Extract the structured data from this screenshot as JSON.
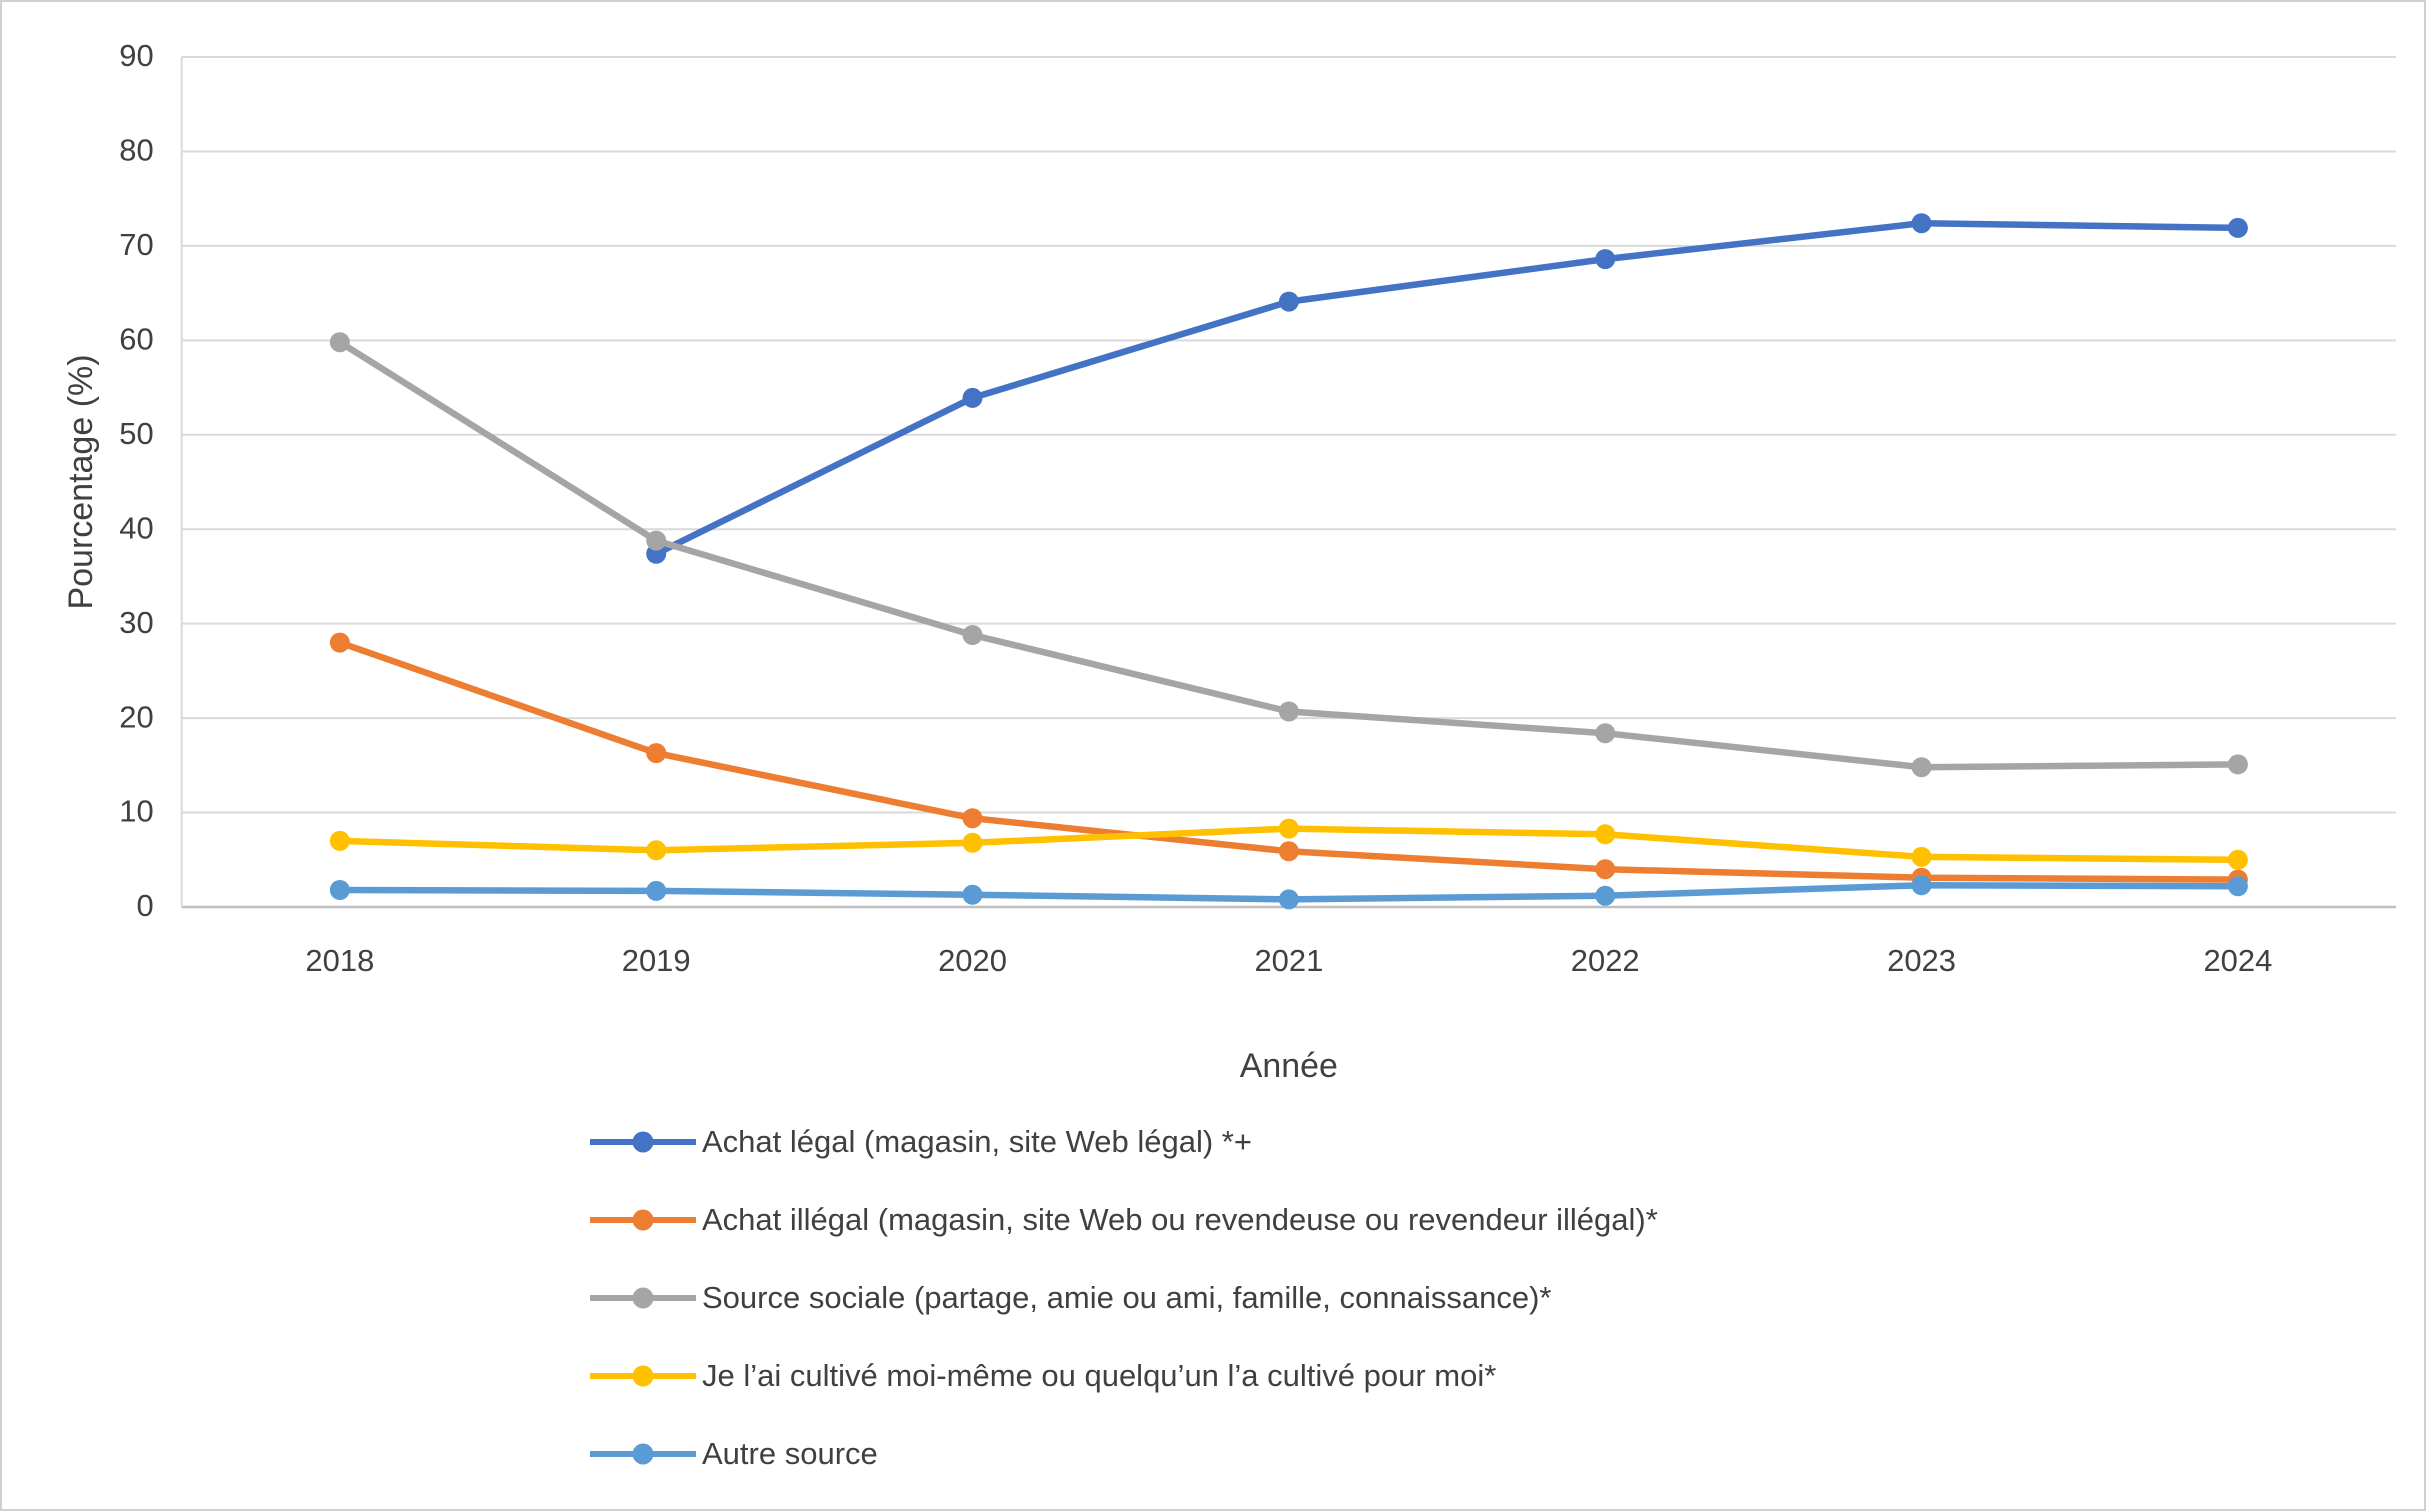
{
  "chart_data": {
    "type": "line",
    "x": [
      "2018",
      "2019",
      "2020",
      "2021",
      "2022",
      "2023",
      "2024"
    ],
    "xlabel": "Année",
    "ylabel": "Pourcentage (%)",
    "ylim": [
      0,
      90
    ],
    "ytick_step": 10,
    "grid": true,
    "legend_position": "bottom-left",
    "series": [
      {
        "name": "Achat légal (magasin, site Web légal) *+",
        "color": "#4472C4",
        "values": [
          null,
          37.4,
          53.9,
          64.1,
          68.6,
          72.4,
          71.9
        ]
      },
      {
        "name": "Achat illégal (magasin, site Web ou revendeuse ou revendeur illégal)*",
        "color": "#ED7D31",
        "values": [
          28.0,
          16.3,
          9.4,
          5.9,
          4.0,
          3.1,
          2.9
        ]
      },
      {
        "name": "Source sociale (partage, amie ou ami, famille, connaissance)*",
        "color": "#A5A5A5",
        "values": [
          59.8,
          38.8,
          28.8,
          20.7,
          18.4,
          14.8,
          15.1
        ]
      },
      {
        "name": "Je l’ai cultivé moi-même ou quelqu’un l’a cultivé pour moi*",
        "color": "#FFC000",
        "values": [
          7.0,
          6.0,
          6.8,
          8.3,
          7.7,
          5.3,
          5.0
        ]
      },
      {
        "name": "Autre source",
        "color": "#5B9BD5",
        "values": [
          1.8,
          1.7,
          1.3,
          0.8,
          1.2,
          2.3,
          2.2
        ]
      }
    ]
  }
}
